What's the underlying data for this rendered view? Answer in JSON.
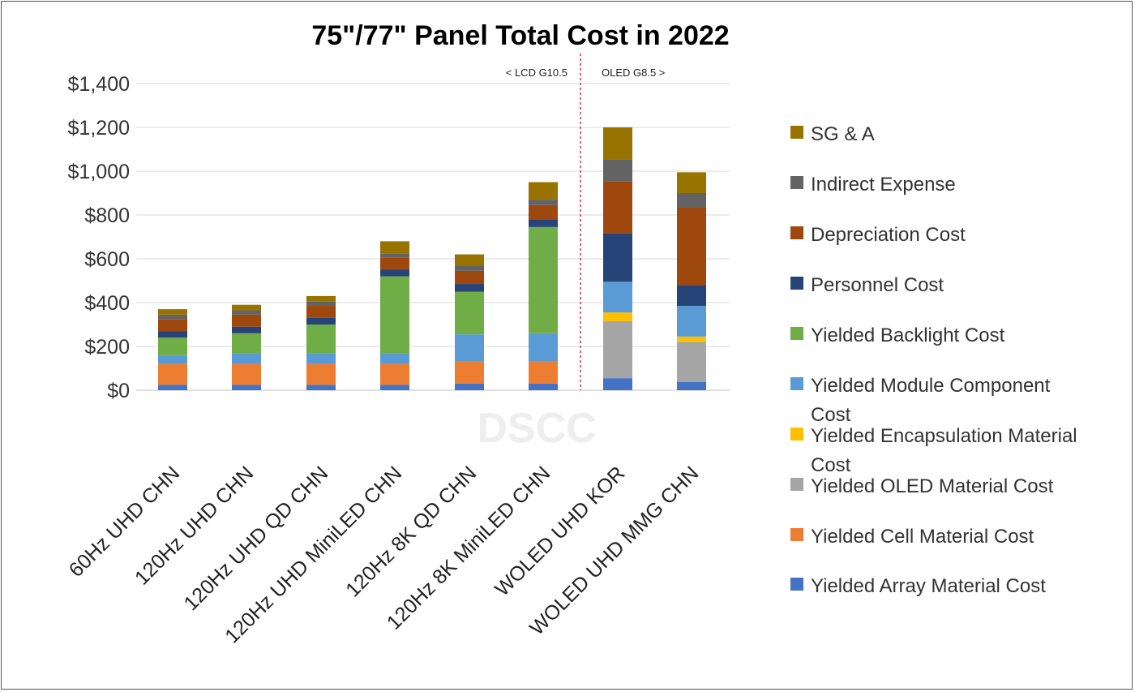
{
  "chart_data": {
    "type": "bar",
    "stacked": true,
    "title": "75\"/77\" Panel Total Cost in 2022",
    "xlabel": "",
    "ylabel": "",
    "ylim": [
      0,
      1400
    ],
    "yticks": [
      "$0",
      "$200",
      "$400",
      "$600",
      "$800",
      "$1,000",
      "$1,200",
      "$1,400"
    ],
    "ytick_values": [
      0,
      200,
      400,
      600,
      800,
      1000,
      1200,
      1400
    ],
    "grid": true,
    "legend_position": "right",
    "watermark": "DSCC",
    "divider": {
      "after_category_index": 5,
      "style": "red-dashed"
    },
    "region_labels": {
      "left": "< LCD G10.5",
      "right": "OLED G8.5 >"
    },
    "categories": [
      "60Hz UHD  CHN",
      "120Hz UHD  CHN",
      "120Hz UHD QD  CHN",
      "120Hz UHD MiniLED CHN",
      "120Hz 8K QD  CHN",
      "120Hz 8K MiniLED CHN",
      "WOLED UHD  KOR",
      "WOLED UHD  MMG CHN"
    ],
    "series": [
      {
        "name": "Yielded Array Material Cost",
        "color": "#4472C4",
        "values": [
          25,
          25,
          25,
          25,
          30,
          30,
          55,
          38
        ]
      },
      {
        "name": "Yielded Cell Material Cost",
        "color": "#ED7D31",
        "values": [
          95,
          95,
          95,
          95,
          100,
          100,
          0,
          0
        ]
      },
      {
        "name": "Yielded OLED Material Cost",
        "color": "#A5A5A5",
        "values": [
          0,
          0,
          0,
          0,
          0,
          0,
          260,
          182
        ]
      },
      {
        "name": "Yielded Encapsulation Material Cost",
        "color": "#FFC000",
        "values": [
          0,
          0,
          0,
          0,
          0,
          0,
          40,
          25
        ]
      },
      {
        "name": "Yielded Module Component Cost",
        "color": "#5B9BD5",
        "values": [
          40,
          50,
          50,
          50,
          125,
          130,
          140,
          140
        ]
      },
      {
        "name": "Yielded Backlight Cost",
        "color": "#70AD47",
        "values": [
          80,
          90,
          130,
          350,
          195,
          485,
          0,
          0
        ]
      },
      {
        "name": "Personnel Cost",
        "color": "#264478",
        "values": [
          30,
          30,
          30,
          30,
          35,
          35,
          220,
          95
        ]
      },
      {
        "name": "Depreciation Cost",
        "color": "#9E480E",
        "values": [
          55,
          55,
          55,
          55,
          60,
          65,
          240,
          355
        ]
      },
      {
        "name": "Indirect Expense",
        "color": "#636363",
        "values": [
          20,
          20,
          20,
          20,
          25,
          25,
          100,
          65
        ]
      },
      {
        "name": "SG & A",
        "color": "#997300",
        "values": [
          25,
          25,
          25,
          55,
          50,
          80,
          145,
          95
        ]
      }
    ],
    "legend_order": [
      "SG & A",
      "Indirect Expense",
      "Depreciation Cost",
      "Personnel Cost",
      "Yielded Backlight Cost",
      "Yielded Module Component Cost",
      "Yielded Encapsulation Material Cost",
      "Yielded OLED Material Cost",
      "Yielded Cell Material Cost",
      "Yielded Array Material Cost"
    ]
  }
}
